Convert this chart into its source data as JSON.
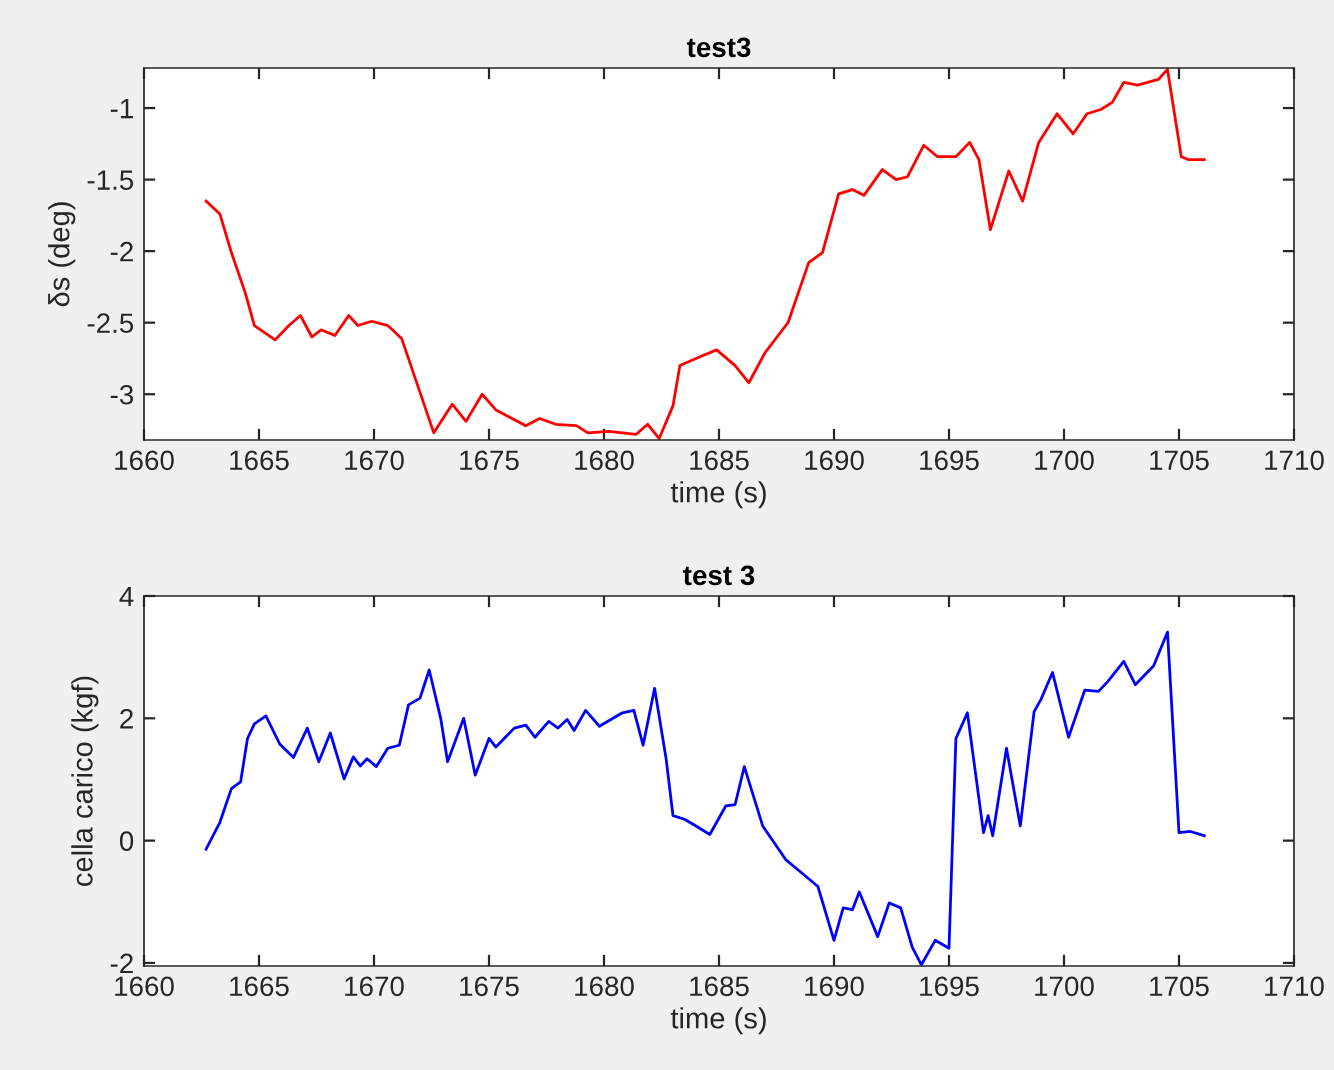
{
  "chart_data": [
    {
      "type": "line",
      "title": "test3",
      "xlabel": "time (s)",
      "ylabel": "δs (deg)",
      "x": [
        1662.7,
        1663.3,
        1663.8,
        1664.4,
        1664.8,
        1665.7,
        1666.3,
        1666.8,
        1667.3,
        1667.7,
        1668.3,
        1668.9,
        1669.3,
        1669.9,
        1670.6,
        1671.2,
        1671.9,
        1672.6,
        1673.4,
        1674.0,
        1674.7,
        1675.3,
        1676.6,
        1677.2,
        1677.9,
        1678.8,
        1679.3,
        1680.2,
        1681.4,
        1681.9,
        1682.4,
        1683.0,
        1683.3,
        1684.3,
        1684.9,
        1685.7,
        1686.3,
        1687.0,
        1688.0,
        1688.9,
        1689.5,
        1690.2,
        1690.8,
        1691.3,
        1692.1,
        1692.7,
        1693.2,
        1693.9,
        1694.5,
        1695.3,
        1695.9,
        1696.3,
        1696.8,
        1697.6,
        1698.2,
        1698.9,
        1699.7,
        1700.4,
        1701.0,
        1701.6,
        1702.1,
        1702.6,
        1703.2,
        1704.1,
        1704.5,
        1705.1,
        1705.4,
        1706.1
      ],
      "series": [
        {
          "color": "#ff0000",
          "values": [
            -1.65,
            -1.74,
            -2.01,
            -2.29,
            -2.52,
            -2.62,
            -2.52,
            -2.45,
            -2.6,
            -2.55,
            -2.59,
            -2.45,
            -2.52,
            -2.49,
            -2.52,
            -2.61,
            -2.94,
            -3.27,
            -3.07,
            -3.19,
            -3.0,
            -3.11,
            -3.22,
            -3.17,
            -3.21,
            -3.22,
            -3.27,
            -3.26,
            -3.28,
            -3.21,
            -3.31,
            -3.08,
            -2.8,
            -2.73,
            -2.69,
            -2.8,
            -2.92,
            -2.71,
            -2.5,
            -2.08,
            -2.01,
            -1.6,
            -1.57,
            -1.61,
            -1.43,
            -1.5,
            -1.48,
            -1.26,
            -1.34,
            -1.34,
            -1.24,
            -1.36,
            -1.85,
            -1.44,
            -1.65,
            -1.24,
            -1.04,
            -1.18,
            -1.04,
            -1.01,
            -0.96,
            -0.82,
            -0.84,
            -0.8,
            -0.73,
            -1.34,
            -1.36,
            -1.36
          ]
        }
      ],
      "xlim": [
        1660,
        1710
      ],
      "xticks": [
        1660,
        1665,
        1670,
        1675,
        1680,
        1685,
        1690,
        1695,
        1700,
        1705,
        1710
      ],
      "ylim": [
        -3.32,
        -0.72
      ],
      "yticks": [
        -3,
        -2.5,
        -2,
        -1.5,
        -1
      ],
      "grid": false
    },
    {
      "type": "line",
      "title": "test 3",
      "xlabel": "time (s)",
      "ylabel": "cella carico (kgf)",
      "x": [
        1662.7,
        1663.3,
        1663.8,
        1664.2,
        1664.5,
        1664.8,
        1665.3,
        1665.9,
        1666.5,
        1667.1,
        1667.6,
        1668.1,
        1668.7,
        1669.1,
        1669.4,
        1669.7,
        1670.1,
        1670.6,
        1671.1,
        1671.5,
        1672.0,
        1672.4,
        1672.9,
        1673.2,
        1673.9,
        1674.4,
        1675.0,
        1675.3,
        1676.1,
        1676.6,
        1677.0,
        1677.6,
        1678.0,
        1678.4,
        1678.7,
        1679.2,
        1679.8,
        1680.8,
        1681.3,
        1681.7,
        1682.2,
        1682.7,
        1683.0,
        1683.5,
        1684.0,
        1684.6,
        1685.3,
        1685.7,
        1686.1,
        1686.9,
        1687.9,
        1688.6,
        1689.3,
        1690.0,
        1690.4,
        1690.8,
        1691.1,
        1691.9,
        1692.4,
        1692.9,
        1693.4,
        1693.8,
        1694.4,
        1695.0,
        1695.3,
        1695.8,
        1696.5,
        1696.7,
        1696.9,
        1697.5,
        1698.1,
        1698.7,
        1699.0,
        1699.5,
        1700.2,
        1700.9,
        1701.5,
        1701.9,
        1702.6,
        1703.1,
        1703.9,
        1704.5,
        1705.0,
        1705.5,
        1706.1
      ],
      "series": [
        {
          "color": "#0000ff",
          "values": [
            -0.14,
            0.3,
            0.85,
            0.96,
            1.67,
            1.91,
            2.04,
            1.58,
            1.36,
            1.84,
            1.29,
            1.76,
            1.01,
            1.37,
            1.22,
            1.34,
            1.21,
            1.51,
            1.56,
            2.22,
            2.33,
            2.79,
            2.0,
            1.29,
            2.0,
            1.07,
            1.67,
            1.53,
            1.84,
            1.89,
            1.69,
            1.95,
            1.84,
            1.98,
            1.8,
            2.13,
            1.87,
            2.09,
            2.13,
            1.56,
            2.49,
            1.34,
            0.41,
            0.35,
            0.24,
            0.1,
            0.57,
            0.59,
            1.21,
            0.24,
            -0.31,
            -0.53,
            -0.75,
            -1.63,
            -1.1,
            -1.13,
            -0.84,
            -1.57,
            -1.02,
            -1.1,
            -1.74,
            -2.03,
            -1.63,
            -1.76,
            1.67,
            2.09,
            0.13,
            0.41,
            0.08,
            1.51,
            0.24,
            2.11,
            2.31,
            2.75,
            1.69,
            2.46,
            2.44,
            2.6,
            2.93,
            2.55,
            2.86,
            3.41,
            0.13,
            0.15,
            0.08
          ]
        }
      ],
      "xlim": [
        1660,
        1710
      ],
      "xticks": [
        1660,
        1665,
        1670,
        1675,
        1680,
        1685,
        1690,
        1695,
        1700,
        1705,
        1710
      ],
      "ylim": [
        -2.05,
        4
      ],
      "yticks": [
        -2,
        0,
        2,
        4
      ],
      "grid": false
    }
  ]
}
